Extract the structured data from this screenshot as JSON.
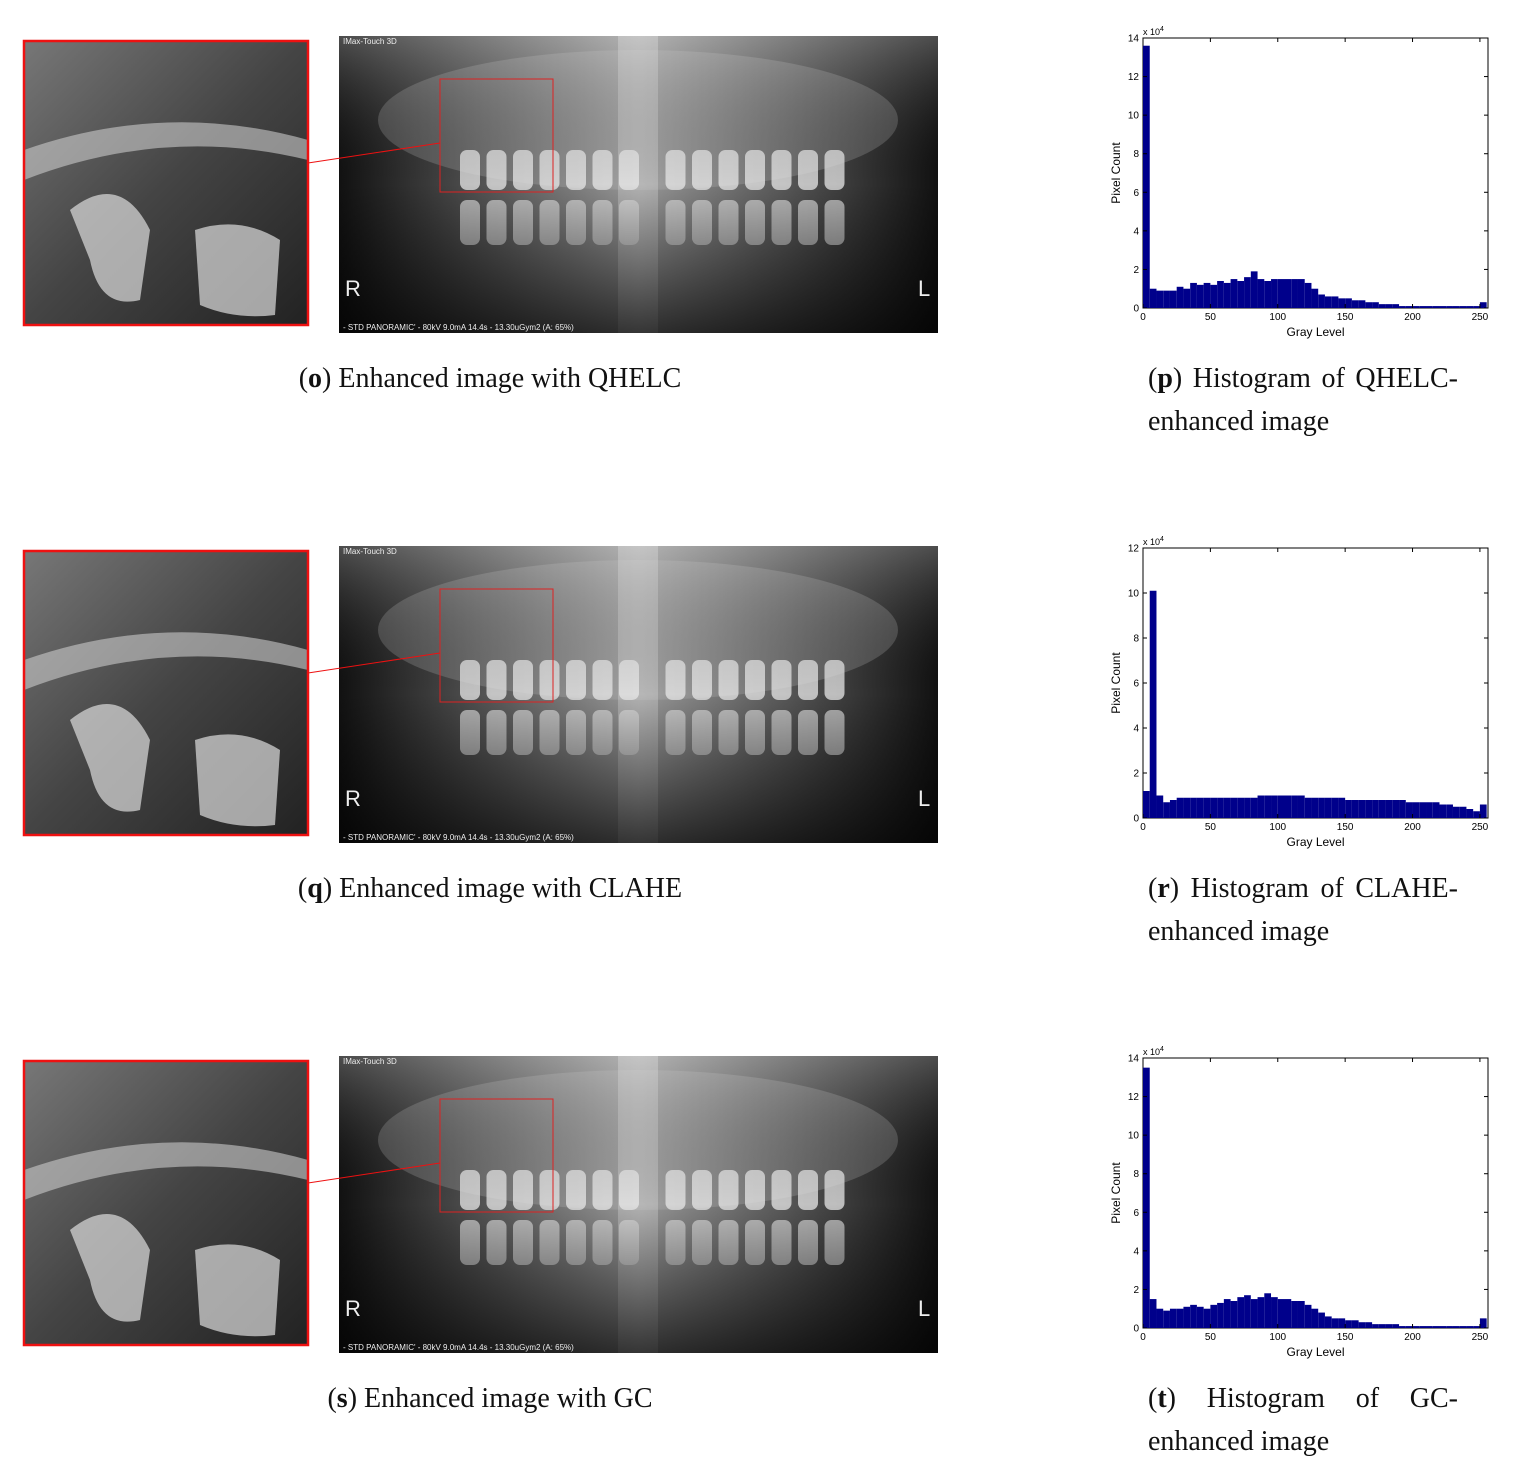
{
  "panels": [
    {
      "caption": {
        "parts": [
          "(",
          "o",
          ") Enhanced image with QHELC"
        ]
      },
      "image_texts": {
        "brand": "IMax-Touch 3D",
        "right": "R",
        "left": "L",
        "footer": "- STD PANORAMIC' - 80kV 9.0mA 14.4s - 13.30uGym2  (A: 65%)"
      }
    },
    {
      "caption": {
        "parts": [
          "(",
          "q",
          ") Enhanced image with CLAHE"
        ]
      },
      "image_texts": {
        "brand": "IMax-Touch 3D",
        "right": "R",
        "left": "L",
        "footer": "- STD PANORAMIC' - 80kV 9.0mA 14.4s - 13.30uGym2  (A: 65%)"
      }
    },
    {
      "caption": {
        "parts": [
          "(",
          "s",
          ") Enhanced image with GC"
        ]
      },
      "image_texts": {
        "brand": "IMax-Touch 3D",
        "right": "R",
        "left": "L",
        "footer": "- STD PANORAMIC' - 80kV 9.0mA 14.4s - 13.30uGym2  (A: 65%)"
      }
    }
  ],
  "chart_data": [
    {
      "type": "histogram",
      "caption": {
        "parts": [
          "(",
          "p",
          ") Histogram of QHELC-enhanced image"
        ]
      },
      "xlabel": "Gray Level",
      "ylabel": "Pixel Count",
      "y_multiplier": "x 10",
      "y_multiplier_exponent": "4",
      "color": "#00008b",
      "bins": [
        0,
        5,
        10,
        15,
        20,
        25,
        30,
        35,
        40,
        45,
        50,
        55,
        60,
        65,
        70,
        75,
        80,
        85,
        90,
        95,
        100,
        105,
        110,
        115,
        120,
        125,
        130,
        135,
        140,
        145,
        150,
        155,
        160,
        165,
        170,
        175,
        180,
        185,
        190,
        195,
        200,
        205,
        210,
        215,
        220,
        225,
        230,
        235,
        240,
        245,
        250,
        255
      ],
      "values": [
        13.6,
        1.0,
        0.9,
        0.9,
        0.9,
        1.1,
        1.0,
        1.3,
        1.2,
        1.3,
        1.2,
        1.4,
        1.3,
        1.5,
        1.4,
        1.6,
        1.9,
        1.5,
        1.4,
        1.5,
        1.5,
        1.5,
        1.5,
        1.5,
        1.3,
        1.0,
        0.7,
        0.6,
        0.6,
        0.5,
        0.5,
        0.4,
        0.4,
        0.3,
        0.3,
        0.2,
        0.2,
        0.2,
        0.1,
        0.1,
        0.1,
        0.1,
        0.1,
        0.1,
        0.1,
        0.1,
        0.1,
        0.1,
        0.1,
        0.1,
        0.3
      ],
      "xlim": [
        0,
        256
      ],
      "ylim": [
        0,
        14
      ],
      "xticks": [
        0,
        50,
        100,
        150,
        200,
        250
      ],
      "yticks": [
        0,
        2,
        4,
        6,
        8,
        10,
        12,
        14
      ]
    },
    {
      "type": "histogram",
      "caption": {
        "parts": [
          "(",
          "r",
          ") Histogram of CLAHE-enhanced image"
        ]
      },
      "xlabel": "Gray Level",
      "ylabel": "Pixel Count",
      "y_multiplier": "x 10",
      "y_multiplier_exponent": "4",
      "color": "#00008b",
      "bins": [
        0,
        5,
        10,
        15,
        20,
        25,
        30,
        35,
        40,
        45,
        50,
        55,
        60,
        65,
        70,
        75,
        80,
        85,
        90,
        95,
        100,
        105,
        110,
        115,
        120,
        125,
        130,
        135,
        140,
        145,
        150,
        155,
        160,
        165,
        170,
        175,
        180,
        185,
        190,
        195,
        200,
        205,
        210,
        215,
        220,
        225,
        230,
        235,
        240,
        245,
        250,
        255
      ],
      "values": [
        1.2,
        10.1,
        1.0,
        0.7,
        0.8,
        0.9,
        0.9,
        0.9,
        0.9,
        0.9,
        0.9,
        0.9,
        0.9,
        0.9,
        0.9,
        0.9,
        0.9,
        1.0,
        1.0,
        1.0,
        1.0,
        1.0,
        1.0,
        1.0,
        0.9,
        0.9,
        0.9,
        0.9,
        0.9,
        0.9,
        0.8,
        0.8,
        0.8,
        0.8,
        0.8,
        0.8,
        0.8,
        0.8,
        0.8,
        0.7,
        0.7,
        0.7,
        0.7,
        0.7,
        0.6,
        0.6,
        0.5,
        0.5,
        0.4,
        0.3,
        0.6
      ],
      "xlim": [
        0,
        256
      ],
      "ylim": [
        0,
        12
      ],
      "xticks": [
        0,
        50,
        100,
        150,
        200,
        250
      ],
      "yticks": [
        0,
        2,
        4,
        6,
        8,
        10,
        12
      ]
    },
    {
      "type": "histogram",
      "caption": {
        "parts": [
          "(",
          "t",
          ") Histogram of GC-enhanced image"
        ]
      },
      "xlabel": "Gray Level",
      "ylabel": "Pixel Count",
      "y_multiplier": "x 10",
      "y_multiplier_exponent": "4",
      "color": "#00008b",
      "bins": [
        0,
        5,
        10,
        15,
        20,
        25,
        30,
        35,
        40,
        45,
        50,
        55,
        60,
        65,
        70,
        75,
        80,
        85,
        90,
        95,
        100,
        105,
        110,
        115,
        120,
        125,
        130,
        135,
        140,
        145,
        150,
        155,
        160,
        165,
        170,
        175,
        180,
        185,
        190,
        195,
        200,
        205,
        210,
        215,
        220,
        225,
        230,
        235,
        240,
        245,
        250,
        255
      ],
      "values": [
        13.5,
        1.5,
        1.0,
        0.9,
        1.0,
        1.0,
        1.1,
        1.2,
        1.1,
        1.0,
        1.2,
        1.3,
        1.5,
        1.4,
        1.6,
        1.7,
        1.5,
        1.6,
        1.8,
        1.6,
        1.5,
        1.5,
        1.4,
        1.4,
        1.2,
        1.0,
        0.8,
        0.6,
        0.5,
        0.5,
        0.4,
        0.4,
        0.3,
        0.3,
        0.2,
        0.2,
        0.2,
        0.2,
        0.1,
        0.1,
        0.1,
        0.1,
        0.1,
        0.1,
        0.1,
        0.1,
        0.1,
        0.1,
        0.1,
        0.1,
        0.5
      ],
      "xlim": [
        0,
        256
      ],
      "ylim": [
        0,
        14
      ],
      "xticks": [
        0,
        50,
        100,
        150,
        200,
        250
      ],
      "yticks": [
        0,
        2,
        4,
        6,
        8,
        10,
        12,
        14
      ]
    }
  ]
}
